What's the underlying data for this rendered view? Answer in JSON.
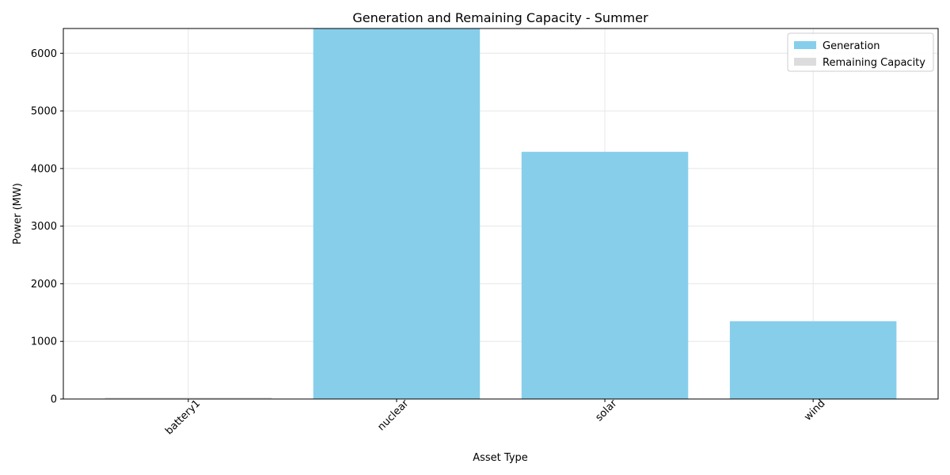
{
  "chart_data": {
    "type": "bar",
    "stacked": true,
    "title": "Generation and Remaining Capacity - Summer",
    "xlabel": "Asset Type",
    "ylabel": "Power (MW)",
    "categories": [
      "battery1",
      "nuclear",
      "solar",
      "wind"
    ],
    "series": [
      {
        "name": "Generation",
        "color": "#87ceeb",
        "values": [
          0,
          6430,
          4290,
          1350
        ]
      },
      {
        "name": "Remaining Capacity",
        "color": "#dcdcdc",
        "values": [
          25,
          0,
          0,
          0
        ]
      }
    ],
    "ylim": [
      0,
      6430
    ],
    "yticks": [
      0,
      1000,
      2000,
      3000,
      4000,
      5000,
      6000
    ],
    "grid": true,
    "legend_position": "top-right",
    "xtick_rotation": 45
  }
}
